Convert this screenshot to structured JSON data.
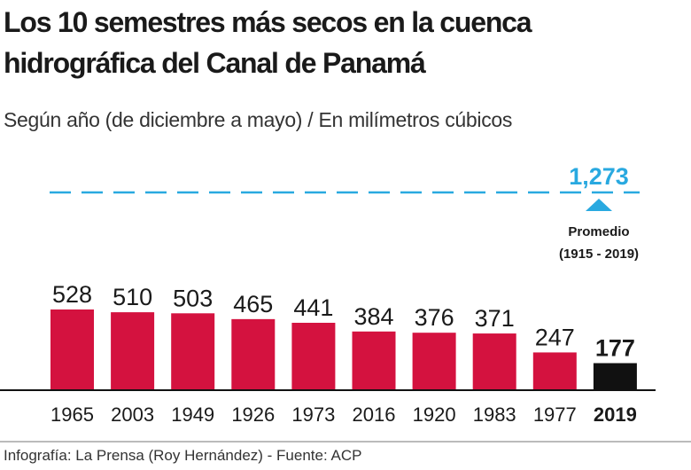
{
  "chart_data": {
    "type": "bar",
    "title": "Los 10 semestres más secos en la cuenca hidrográfica del Canal de Panamá",
    "subtitle": "Según año (de diciembre a mayo) / En milímetros cúbicos",
    "categories": [
      "1965",
      "2003",
      "1949",
      "1926",
      "1973",
      "2016",
      "1920",
      "1983",
      "1977",
      "2019"
    ],
    "values": [
      528,
      510,
      503,
      465,
      441,
      384,
      376,
      371,
      247,
      177
    ],
    "highlight": "2019",
    "reference_line": {
      "value": 1273,
      "label": "1,273",
      "caption_line1": "Promedio",
      "caption_line2": "(1915 - 2019)",
      "style": "dashed"
    },
    "ylim": [
      0,
      1300
    ],
    "grid": false,
    "colors": {
      "bar": "#d4123f",
      "highlight_bar": "#111111",
      "reference": "#29a9e0"
    }
  },
  "footer": {
    "credit": "Infografía: La Prensa (Roy Hernández) - Fuente: ACP"
  }
}
